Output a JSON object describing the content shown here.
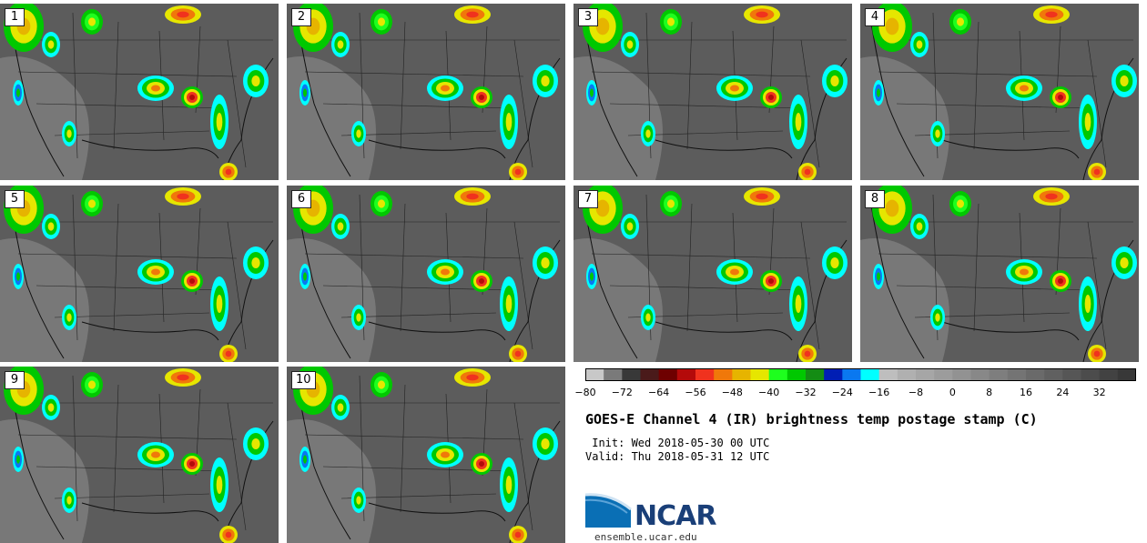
{
  "panels": [
    {
      "label": "1"
    },
    {
      "label": "2"
    },
    {
      "label": "3"
    },
    {
      "label": "4"
    },
    {
      "label": "5"
    },
    {
      "label": "6"
    },
    {
      "label": "7"
    },
    {
      "label": "8"
    },
    {
      "label": "9"
    },
    {
      "label": "10"
    }
  ],
  "colorbar": {
    "colors": [
      "#c8c8c8",
      "#7a7a7a",
      "#383838",
      "#4a1a1a",
      "#6e0000",
      "#b40a0a",
      "#f0321e",
      "#f0780a",
      "#e6b400",
      "#e6e600",
      "#1eff1e",
      "#00c800",
      "#148c14",
      "#001eb4",
      "#0a78f0",
      "#00ffff",
      "#bebebe",
      "#b0b0b0",
      "#a6a6a6",
      "#9c9c9c",
      "#929292",
      "#888888",
      "#7e7e7e",
      "#747474",
      "#6a6a6a",
      "#606060",
      "#565656",
      "#4c4c4c",
      "#424242",
      "#383838"
    ],
    "ticks": [
      "−80",
      "−72",
      "−64",
      "−56",
      "−48",
      "−40",
      "−32",
      "−24",
      "−16",
      "−8",
      "0",
      "8",
      "16",
      "24",
      "32"
    ]
  },
  "title": "GOES-E Channel 4 (IR) brightness temp postage stamp (C)",
  "init": " Init: Wed 2018-05-30 00 UTC",
  "valid": "Valid: Thu 2018-05-31 12 UTC",
  "logo": {
    "text": "NCAR",
    "icon": "ncar-logo-icon",
    "color": "#1a3f78"
  },
  "site": "ensemble.ucar.edu"
}
